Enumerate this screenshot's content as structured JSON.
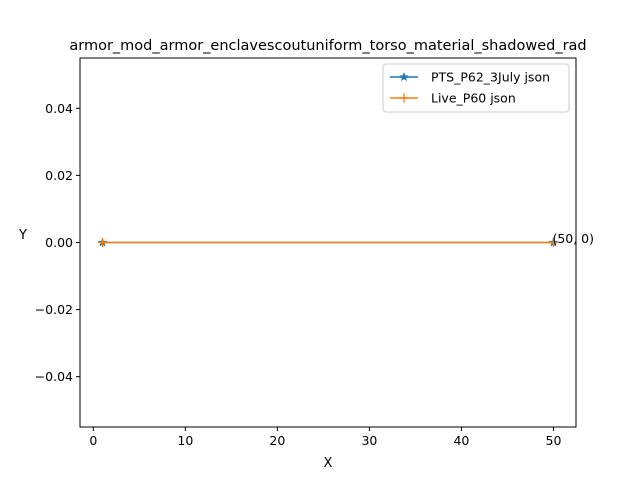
{
  "chart_data": {
    "type": "line",
    "title": "armor_mod_armor_enclavescoutuniform_torso_material_shadowed_rad",
    "xlabel": "X",
    "ylabel": "Y",
    "xlim": [
      -1.45,
      52.45
    ],
    "ylim": [
      -0.055,
      0.055
    ],
    "x_ticks": [
      0,
      10,
      20,
      30,
      40,
      50
    ],
    "y_ticks": [
      -0.04,
      -0.02,
      0.0,
      0.02,
      0.04
    ],
    "x_tick_labels": [
      "0",
      "10",
      "20",
      "30",
      "40",
      "50"
    ],
    "y_tick_labels": [
      "−0.04",
      "−0.02",
      "0.00",
      "0.02",
      "0.04"
    ],
    "grid": false,
    "legend_position": "top-right",
    "series": [
      {
        "name": "PTS_P62_3July json",
        "color": "#1f77b4",
        "marker": "star",
        "x": [
          1,
          50
        ],
        "y": [
          0,
          0
        ]
      },
      {
        "name": "Live_P60 json",
        "color": "#ff7f0e",
        "marker": "plus",
        "x": [
          1,
          50
        ],
        "y": [
          0,
          0
        ]
      }
    ],
    "annotations": [
      {
        "text": "(50, 0)",
        "x": 50,
        "y": 0
      }
    ]
  }
}
